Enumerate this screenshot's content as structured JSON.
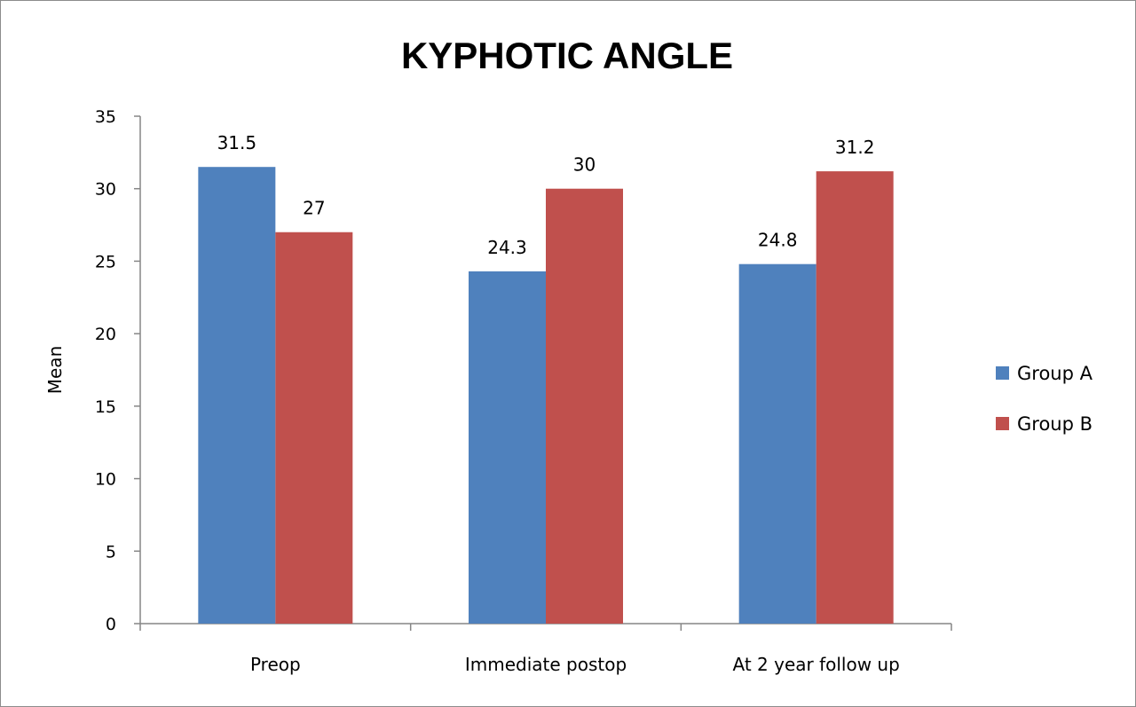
{
  "chart_data": {
    "type": "bar",
    "title": "KYPHOTIC ANGLE",
    "xlabel": "",
    "ylabel": "Mean",
    "categories": [
      "Preop",
      "Immediate postop",
      "At 2 year follow up"
    ],
    "series": [
      {
        "name": "Group A",
        "values": [
          31.5,
          24.3,
          24.8
        ],
        "color": "#4f81bd"
      },
      {
        "name": "Group B",
        "values": [
          27,
          30,
          31.2
        ],
        "color": "#c0504d"
      }
    ],
    "data_labels": [
      [
        "31.5",
        "24.3",
        "24.8"
      ],
      [
        "27",
        "30",
        "31.2"
      ]
    ],
    "ylim": [
      0,
      35
    ],
    "yticks": [
      0,
      5,
      10,
      15,
      20,
      25,
      30,
      35
    ],
    "grid": false,
    "legend_position": "right"
  }
}
